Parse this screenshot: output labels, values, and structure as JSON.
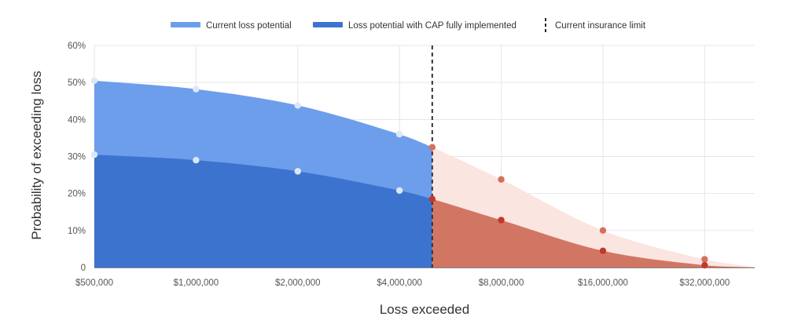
{
  "chart_data": {
    "type": "area",
    "title": "",
    "xlabel": "Loss exceeded",
    "ylabel": "Probability of exceeding loss",
    "x_scale": "log2",
    "x_ticks": [
      500000,
      1000000,
      2000000,
      4000000,
      8000000,
      16000000,
      32000000
    ],
    "x_tick_labels": [
      "$500,000",
      "$1,000,000",
      "$2,000,000",
      "$4,000,000",
      "$8,000,000",
      "$16,000,000",
      "$32,000,000"
    ],
    "y_ticks": [
      0,
      10,
      20,
      30,
      40,
      50,
      60
    ],
    "y_tick_labels": [
      "0",
      "10%",
      "20%",
      "30%",
      "40%",
      "50%",
      "60%"
    ],
    "ylim": [
      0,
      60
    ],
    "xlim": [
      500000,
      45000000
    ],
    "grid": true,
    "legend_position": "top-center",
    "insurance_limit": 5000000,
    "series": [
      {
        "name": "Current loss potential",
        "color": "#6d9eeb",
        "color_beyond_limit": "#fbe5e1",
        "points": [
          {
            "x": 500000,
            "y": 50.5
          },
          {
            "x": 1000000,
            "y": 48.2
          },
          {
            "x": 2000000,
            "y": 43.8
          },
          {
            "x": 4000000,
            "y": 36.0
          },
          {
            "x": 5000000,
            "y": 32.5
          },
          {
            "x": 8000000,
            "y": 23.8
          },
          {
            "x": 16000000,
            "y": 10.0
          },
          {
            "x": 32000000,
            "y": 2.2
          }
        ]
      },
      {
        "name": "Loss potential with CAP fully implemented",
        "color": "#3c73cf",
        "color_beyond_limit": "#d27664",
        "points": [
          {
            "x": 500000,
            "y": 30.5
          },
          {
            "x": 1000000,
            "y": 29.0
          },
          {
            "x": 2000000,
            "y": 26.0
          },
          {
            "x": 4000000,
            "y": 20.8
          },
          {
            "x": 5000000,
            "y": 18.5
          },
          {
            "x": 8000000,
            "y": 12.8
          },
          {
            "x": 16000000,
            "y": 4.5
          },
          {
            "x": 32000000,
            "y": 0.6
          }
        ]
      }
    ],
    "reference_line": {
      "name": "Current insurance limit",
      "x": 5000000,
      "style": "dashed",
      "color": "#333333"
    },
    "marker_colors": {
      "before_limit": "#dce8f8",
      "beyond_limit_upper": "#d4705e",
      "beyond_limit_lower": "#c0392b"
    }
  }
}
